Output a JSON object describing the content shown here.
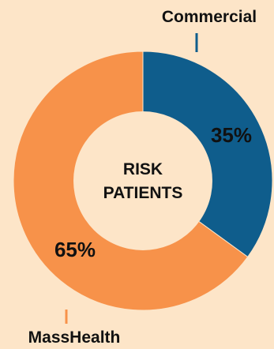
{
  "chart_data": {
    "type": "pie",
    "variant": "donut",
    "center_label": [
      "RISK",
      "PATIENTS"
    ],
    "slices": [
      {
        "name": "Commercial",
        "value": 35,
        "value_label": "35%",
        "color": "#0f5d8c"
      },
      {
        "name": "MassHealth",
        "value": 65,
        "value_label": "65%",
        "color": "#f7924a"
      }
    ],
    "background_color": "#fde5c8",
    "center_color": "#fde5c8",
    "leader_line_color": "#f7924a"
  }
}
